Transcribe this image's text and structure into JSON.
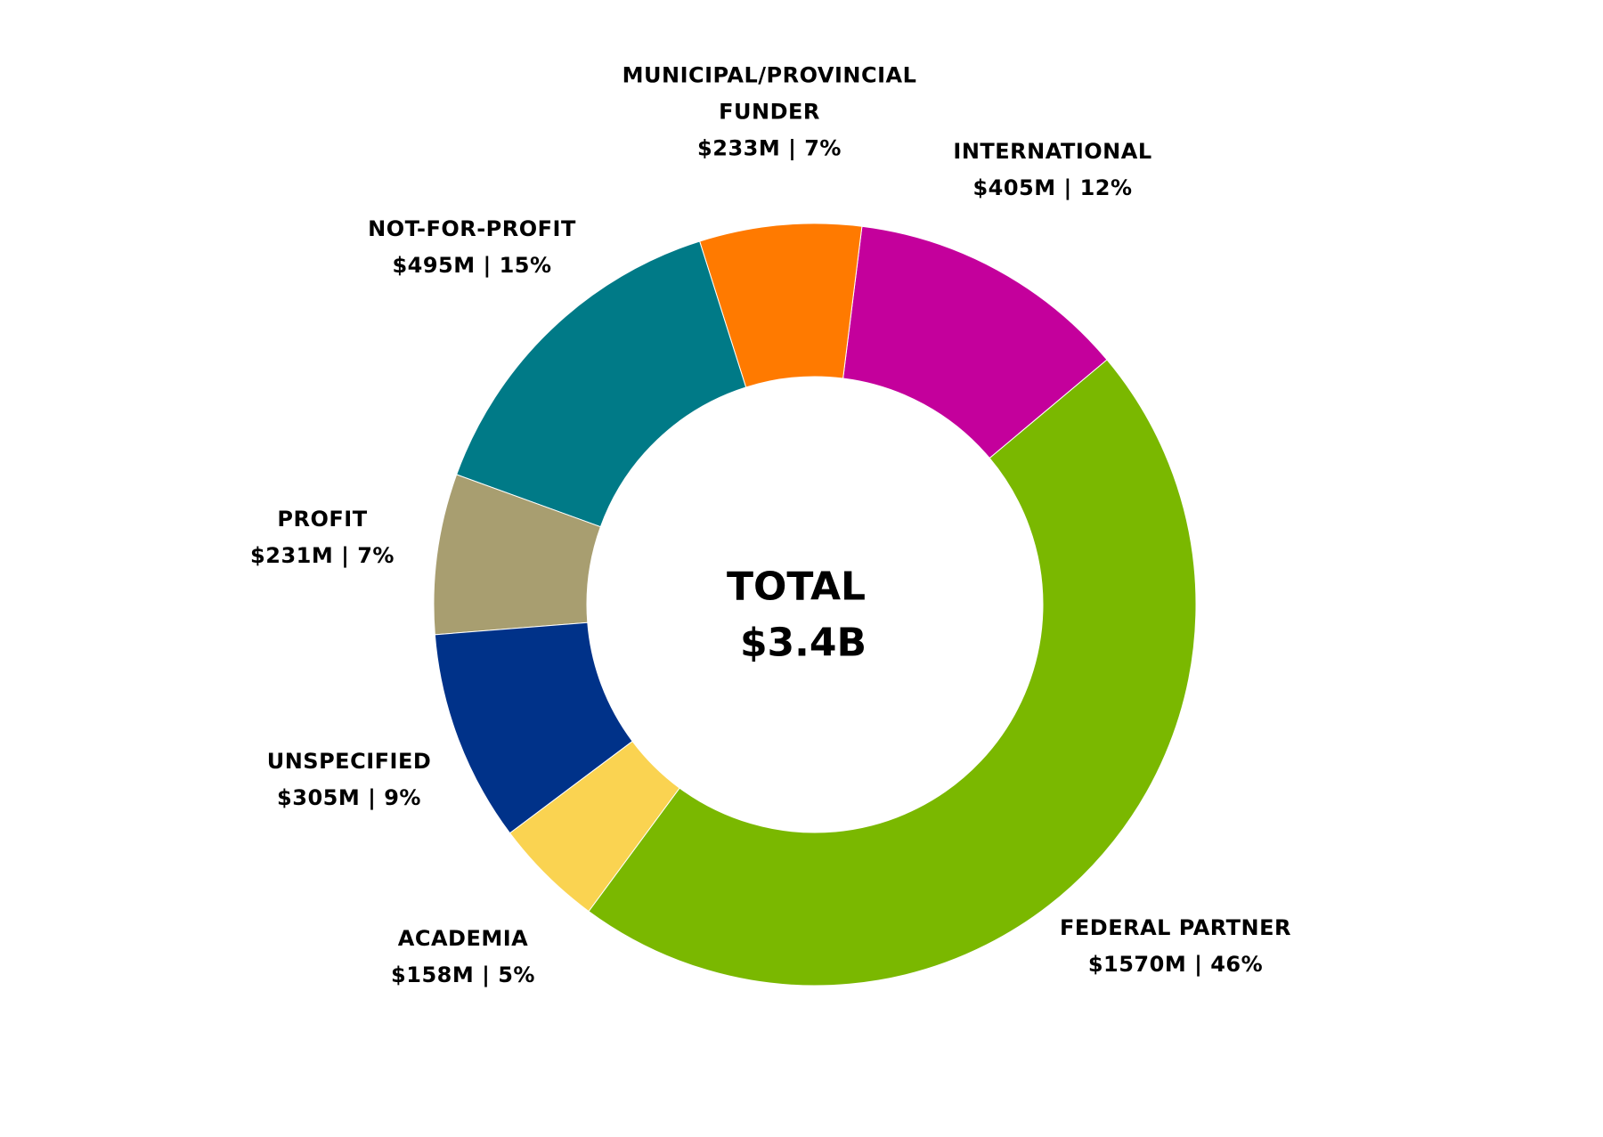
{
  "chart_data": {
    "type": "pie",
    "variant": "donut",
    "unit": "$M",
    "center_title": "TOTAL",
    "center_value": "$3.4B",
    "slices": [
      {
        "name": "FEDERAL PARTNER",
        "value": 1570,
        "label": "$1570M | 46%",
        "color": "#7ab800"
      },
      {
        "name": "INTERNATIONAL",
        "value": 405,
        "label": "$405M | 12%",
        "color": "#c4009c"
      },
      {
        "name": "MUNICIPAL/PROVINCIAL FUNDER",
        "value": 233,
        "label": "$233M | 7%",
        "color": "#ff7a00"
      },
      {
        "name": "NOT-FOR-PROFIT",
        "value": 495,
        "label": "$495M | 15%",
        "color": "#007a87"
      },
      {
        "name": "PROFIT",
        "value": 231,
        "label": "$231M | 7%",
        "color": "#a89e70"
      },
      {
        "name": "UNSPECIFIED",
        "value": 305,
        "label": "$305M | 9%",
        "color": "#003289"
      },
      {
        "name": "ACADEMIA",
        "value": 158,
        "label": "$158M | 5%",
        "color": "#fad351"
      }
    ]
  }
}
